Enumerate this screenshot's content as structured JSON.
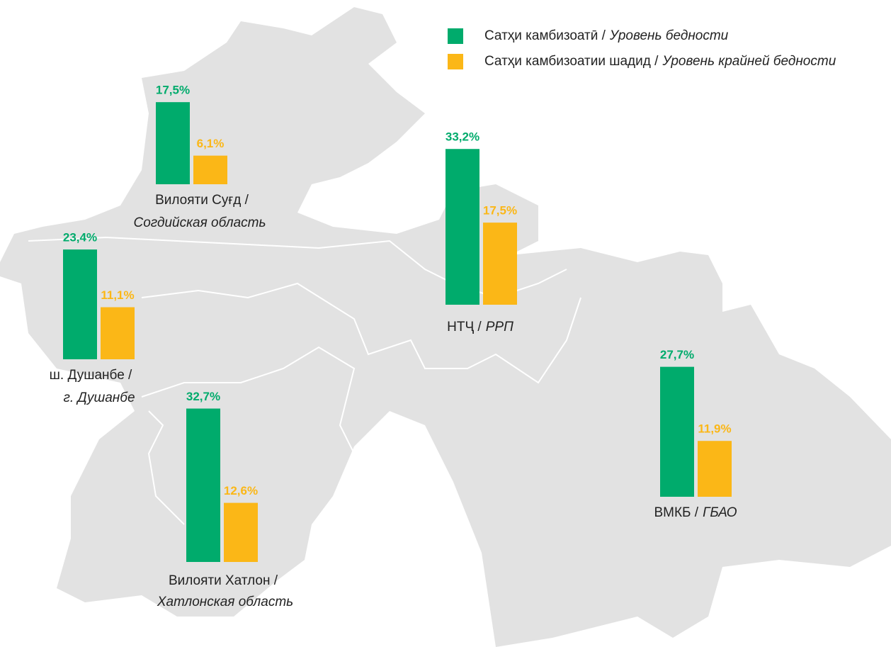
{
  "legend": [
    {
      "text": "Сатҳи  камбизоатӣ /",
      "italic": "Уровень  бедности",
      "color": "#00ab6c"
    },
    {
      "text": "Сатҳи  камбизоатии шадид /",
      "italic": "Уровень крайней бедности",
      "color": "#fbb717"
    }
  ],
  "regions": [
    {
      "name": "Вилояти Суғд /",
      "name_italic": "Согдийская область",
      "values": [
        17.5,
        6.1
      ],
      "value_labels": [
        "17,5%",
        "6,1%"
      ]
    },
    {
      "name": "ш. Душанбе /",
      "name_italic": "г. Душанбе",
      "values": [
        23.4,
        11.1
      ],
      "value_labels": [
        "23,4%",
        "11,1%"
      ]
    },
    {
      "name": "Вилояти Хатлон /",
      "name_italic": "Хатлонская область",
      "values": [
        32.7,
        12.6
      ],
      "value_labels": [
        "32,7%",
        "12,6%"
      ]
    },
    {
      "name": "НТҶ /",
      "name_italic": "РРП",
      "values": [
        33.2,
        17.5
      ],
      "value_labels": [
        "33,2%",
        "17,5%"
      ]
    },
    {
      "name": "ВМКБ /",
      "name_italic": "ГБАО",
      "values": [
        27.7,
        11.9
      ],
      "value_labels": [
        "27,7%",
        "11,9%"
      ]
    }
  ]
}
